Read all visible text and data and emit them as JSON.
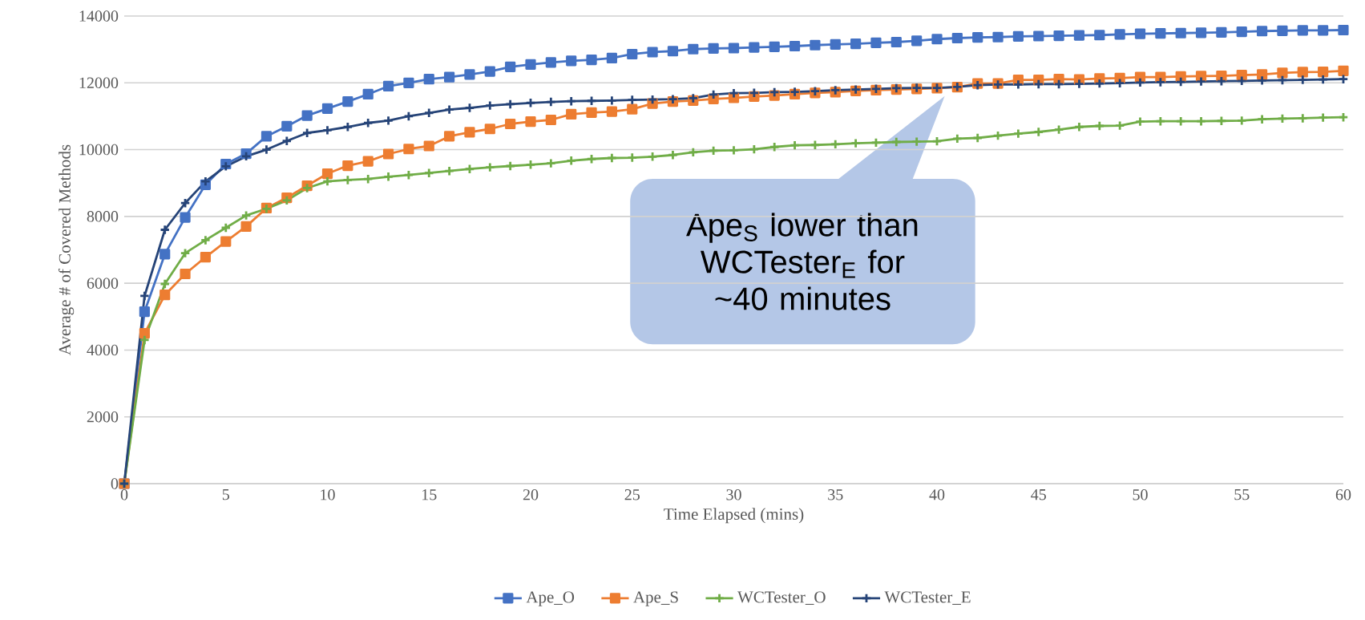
{
  "chart_data": {
    "type": "line",
    "xlabel": "Time Elapsed (mins)",
    "ylabel": "Average # of Covered Methods",
    "x": [
      0,
      1,
      2,
      3,
      4,
      5,
      6,
      7,
      8,
      9,
      10,
      11,
      12,
      13,
      14,
      15,
      16,
      17,
      18,
      19,
      20,
      21,
      22,
      23,
      24,
      25,
      26,
      27,
      28,
      29,
      30,
      31,
      32,
      33,
      34,
      35,
      36,
      37,
      38,
      39,
      40,
      41,
      42,
      43,
      44,
      45,
      46,
      47,
      48,
      49,
      50,
      51,
      52,
      53,
      54,
      55,
      56,
      57,
      58,
      59,
      60
    ],
    "xlim": [
      0,
      60
    ],
    "xticks": [
      0,
      5,
      10,
      15,
      20,
      25,
      30,
      35,
      40,
      45,
      50,
      55,
      60
    ],
    "ylim": [
      0,
      14000
    ],
    "yticks": [
      0,
      2000,
      4000,
      6000,
      8000,
      10000,
      12000,
      14000
    ],
    "grid": "y",
    "legend": "bottom",
    "series": [
      {
        "name": "Ape_O",
        "color": "#4472c4",
        "marker": "square",
        "values": [
          0,
          5150,
          6870,
          7970,
          8950,
          9570,
          9880,
          10400,
          10700,
          11020,
          11230,
          11440,
          11660,
          11900,
          12000,
          12110,
          12170,
          12250,
          12340,
          12480,
          12550,
          12610,
          12660,
          12690,
          12740,
          12860,
          12920,
          12950,
          13010,
          13030,
          13040,
          13060,
          13080,
          13100,
          13130,
          13150,
          13170,
          13200,
          13220,
          13260,
          13310,
          13340,
          13360,
          13370,
          13390,
          13400,
          13410,
          13420,
          13430,
          13450,
          13470,
          13480,
          13490,
          13500,
          13510,
          13530,
          13550,
          13560,
          13570,
          13570,
          13580
        ]
      },
      {
        "name": "Ape_S",
        "color": "#ed7d31",
        "marker": "square",
        "values": [
          0,
          4500,
          5650,
          6280,
          6780,
          7250,
          7700,
          8250,
          8560,
          8920,
          9280,
          9520,
          9650,
          9870,
          10020,
          10110,
          10400,
          10520,
          10620,
          10770,
          10840,
          10890,
          11060,
          11110,
          11140,
          11210,
          11380,
          11440,
          11470,
          11520,
          11550,
          11590,
          11620,
          11660,
          11700,
          11720,
          11760,
          11780,
          11800,
          11820,
          11840,
          11870,
          11980,
          11980,
          12090,
          12090,
          12110,
          12100,
          12130,
          12140,
          12170,
          12170,
          12190,
          12200,
          12210,
          12230,
          12250,
          12300,
          12320,
          12330,
          12360
        ]
      },
      {
        "name": "WCTester_O",
        "color": "#70ad47",
        "marker": "cross",
        "values": [
          0,
          4300,
          5980,
          6900,
          7290,
          7660,
          8030,
          8230,
          8480,
          8850,
          9050,
          9090,
          9120,
          9190,
          9240,
          9300,
          9360,
          9420,
          9470,
          9510,
          9550,
          9590,
          9670,
          9720,
          9750,
          9760,
          9790,
          9840,
          9920,
          9970,
          9980,
          10010,
          10080,
          10130,
          10140,
          10160,
          10190,
          10210,
          10230,
          10240,
          10250,
          10330,
          10350,
          10420,
          10480,
          10530,
          10600,
          10680,
          10710,
          10720,
          10840,
          10850,
          10850,
          10850,
          10860,
          10870,
          10910,
          10930,
          10940,
          10960,
          10970
        ]
      },
      {
        "name": "WCTester_E",
        "color": "#264478",
        "marker": "cross",
        "values": [
          0,
          5620,
          7600,
          8400,
          9050,
          9500,
          9800,
          10000,
          10260,
          10500,
          10580,
          10680,
          10800,
          10870,
          11000,
          11100,
          11200,
          11250,
          11320,
          11360,
          11400,
          11430,
          11450,
          11460,
          11470,
          11490,
          11500,
          11510,
          11540,
          11650,
          11690,
          11700,
          11720,
          11730,
          11750,
          11780,
          11800,
          11820,
          11840,
          11850,
          11850,
          11880,
          11930,
          11950,
          11950,
          11960,
          11960,
          11970,
          11980,
          11990,
          12010,
          12020,
          12030,
          12040,
          12050,
          12060,
          12070,
          12080,
          12090,
          12100,
          12110
        ]
      }
    ],
    "annotations": [
      "Ape$_{S}$ lower than WCTester$_{E}$ for ~40 minutes"
    ]
  }
}
